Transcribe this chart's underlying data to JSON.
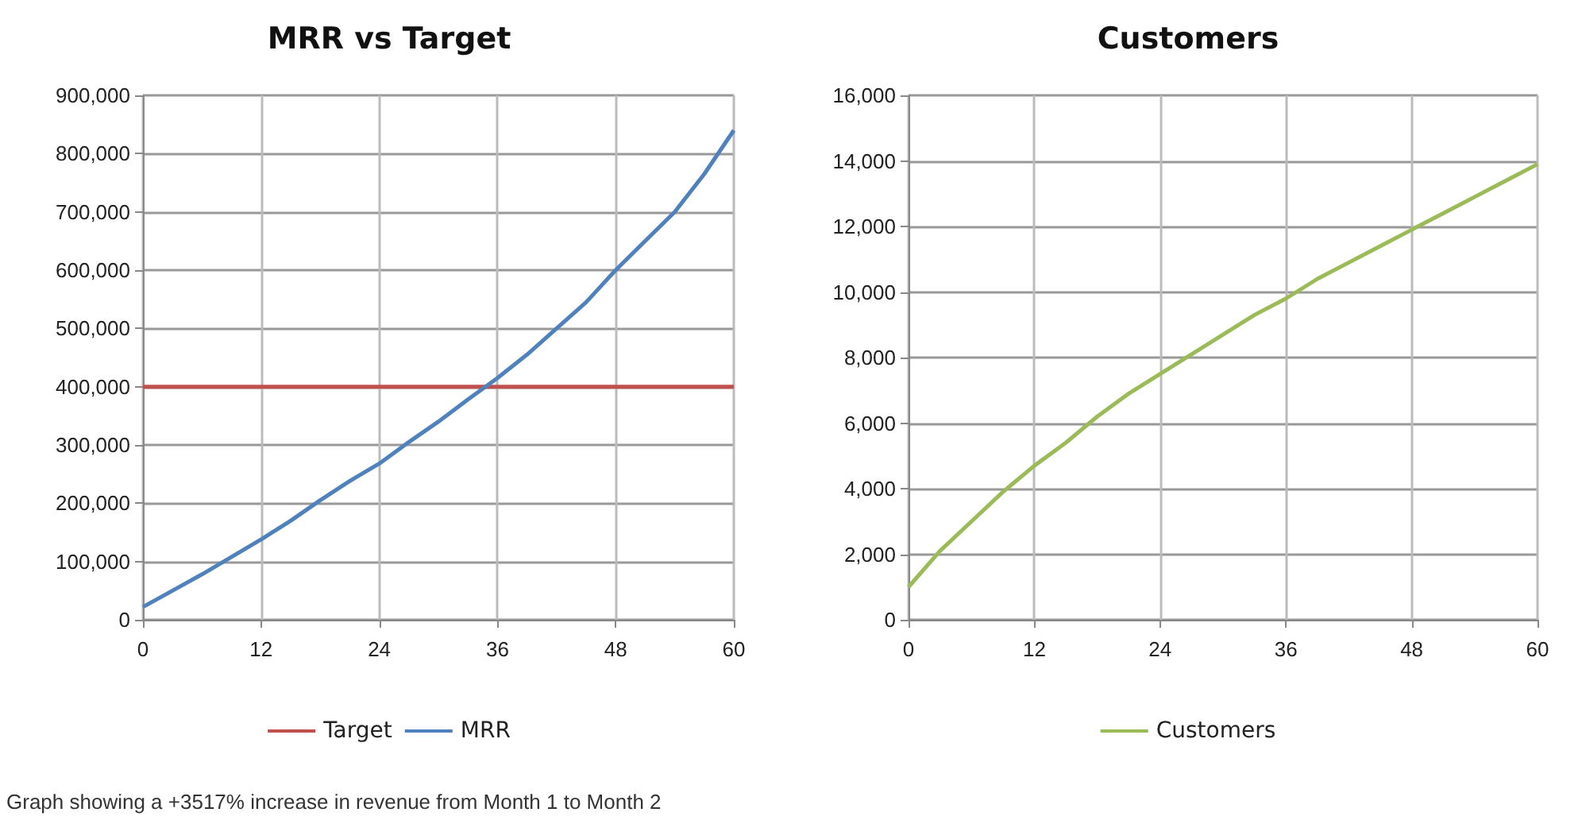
{
  "chart_data": [
    {
      "type": "line",
      "title": "MRR vs Target",
      "xlim": [
        0,
        60
      ],
      "xticks": [
        0,
        12,
        24,
        36,
        48,
        60
      ],
      "ylim": [
        0,
        900000
      ],
      "yticks": [
        {
          "value": 0,
          "label": "0"
        },
        {
          "value": 100000,
          "label": "100,000"
        },
        {
          "value": 200000,
          "label": "200,000"
        },
        {
          "value": 300000,
          "label": "300,000"
        },
        {
          "value": 400000,
          "label": "400,000"
        },
        {
          "value": 500000,
          "label": "500,000"
        },
        {
          "value": 600000,
          "label": "600,000"
        },
        {
          "value": 700000,
          "label": "700,000"
        },
        {
          "value": 800000,
          "label": "800,000"
        },
        {
          "value": 900000,
          "label": "900,000"
        }
      ],
      "grid": true,
      "legend": "bottom",
      "marker": "none",
      "line_style": "solid",
      "x": [
        0,
        3,
        6,
        9,
        12,
        15,
        18,
        21,
        24,
        27,
        30,
        33,
        36,
        39,
        42,
        45,
        48,
        51,
        54,
        57,
        60
      ],
      "series": [
        {
          "name": "Target",
          "color": "#c0504d",
          "x": [
            0,
            60
          ],
          "values": [
            400000,
            400000
          ]
        },
        {
          "name": "MRR",
          "color": "#4f81bd",
          "values": [
            22000,
            50000,
            78000,
            108000,
            138000,
            170000,
            205000,
            238000,
            268000,
            305000,
            340000,
            378000,
            415000,
            455000,
            500000,
            545000,
            600000,
            650000,
            700000,
            765000,
            840000
          ]
        }
      ],
      "annotations": [
        "Graph showing a +3517% increase in revenue from Month 1 to Month 2"
      ]
    },
    {
      "type": "line",
      "title": "Customers",
      "xlim": [
        0,
        60
      ],
      "xticks": [
        0,
        12,
        24,
        36,
        48,
        60
      ],
      "ylim": [
        0,
        16000
      ],
      "yticks": [
        {
          "value": 0,
          "label": "0"
        },
        {
          "value": 2000,
          "label": "2,000"
        },
        {
          "value": 4000,
          "label": "4,000"
        },
        {
          "value": 6000,
          "label": "6,000"
        },
        {
          "value": 8000,
          "label": "8,000"
        },
        {
          "value": 10000,
          "label": "10,000"
        },
        {
          "value": 12000,
          "label": "12,000"
        },
        {
          "value": 14000,
          "label": "14,000"
        },
        {
          "value": 16000,
          "label": "16,000"
        }
      ],
      "grid": true,
      "legend": "bottom",
      "marker": "none",
      "line_style": "solid",
      "x": [
        0,
        3,
        6,
        9,
        12,
        15,
        18,
        21,
        24,
        27,
        30,
        33,
        36,
        39,
        42,
        45,
        48,
        51,
        54,
        57,
        60
      ],
      "series": [
        {
          "name": "Customers",
          "color": "#9bbb59",
          "values": [
            1000,
            2100,
            3000,
            3900,
            4700,
            5400,
            6200,
            6900,
            7500,
            8100,
            8700,
            9300,
            9800,
            10400,
            10900,
            11400,
            11900,
            12400,
            12900,
            13400,
            13900
          ]
        }
      ]
    }
  ]
}
